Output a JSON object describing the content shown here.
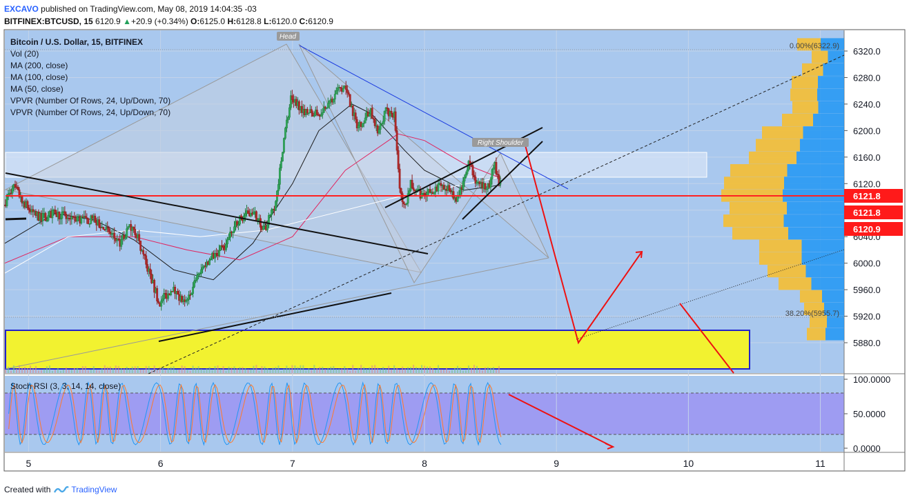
{
  "header": {
    "line1": {
      "user": "EXCAVO",
      "text": "published on TradingView.com, May 08, 2019 14:04:35 -03"
    },
    "line2": {
      "symbol": "BITFINEX:BTCUSD, 15",
      "price": "6120.9",
      "change": "+20.9 (+0.34%)",
      "o": "6125.0",
      "h": "6128.8",
      "l": "6120.0",
      "c": "6120.9"
    }
  },
  "legend": {
    "title": "Bitcoin / U.S. Dollar, 15, BITFINEX",
    "items": [
      "Vol (20)",
      "MA (200, close)",
      "MA (100, close)",
      "MA (50, close)",
      "VPVR (Number Of Rows, 24, Up/Down, 70)",
      "VPVR (Number Of Rows, 24, Up/Down, 70)"
    ]
  },
  "stoch": {
    "label": "Stoch RSI (3, 3, 14, 14, close)"
  },
  "annotations": {
    "head": "Head",
    "right_shoulder": "Right Shoulder",
    "fib_top": "0.00%(6322.9)",
    "fib_382": "38.20%(5955.7)"
  },
  "price_labels": [
    "6121.8",
    "6121.8",
    "6120.9"
  ],
  "footer": {
    "text": "Created with",
    "brand": "TradingView"
  },
  "colors": {
    "bg": "#a9c8ee",
    "red_line": "#ff2020",
    "yellow_zone": "#f2f230",
    "stoch_band": "#9e9cf2",
    "vp_up": "#2196f3",
    "vp_down": "#f5be32"
  },
  "chart_data": [
    {
      "type": "candlestick",
      "title": "Bitcoin / U.S. Dollar, 15, BITFINEX",
      "x_tick_labels": [
        "5",
        "6",
        "7",
        "8",
        "9",
        "10",
        "11"
      ],
      "y_tick_labels": [
        "6320.0",
        "6280.0",
        "6240.0",
        "6200.0",
        "6160.0",
        "6120.0",
        "6080.0",
        "6040.0",
        "6000.0",
        "5960.0",
        "5920.0",
        "5880.0"
      ],
      "ylim": [
        5875,
        6333
      ],
      "xlim": [
        4.82,
        11.18
      ],
      "current_price": 6120.9,
      "horizontal_levels": [
        6121.8
      ],
      "price_path": [
        [
          4.82,
          6088
        ],
        [
          4.9,
          6115
        ],
        [
          5.0,
          6085
        ],
        [
          5.1,
          6068
        ],
        [
          5.2,
          6075
        ],
        [
          5.35,
          6068
        ],
        [
          5.5,
          6065
        ],
        [
          5.6,
          6050
        ],
        [
          5.7,
          6030
        ],
        [
          5.8,
          6060
        ],
        [
          5.9,
          6000
        ],
        [
          6.0,
          5940
        ],
        [
          6.1,
          5962
        ],
        [
          6.2,
          5935
        ],
        [
          6.3,
          5985
        ],
        [
          6.4,
          6010
        ],
        [
          6.5,
          6025
        ],
        [
          6.6,
          6065
        ],
        [
          6.7,
          6080
        ],
        [
          6.8,
          6050
        ],
        [
          6.88,
          6090
        ],
        [
          6.95,
          6195
        ],
        [
          7.0,
          6250
        ],
        [
          7.1,
          6230
        ],
        [
          7.2,
          6225
        ],
        [
          7.3,
          6245
        ],
        [
          7.4,
          6270
        ],
        [
          7.46,
          6235
        ],
        [
          7.5,
          6205
        ],
        [
          7.6,
          6230
        ],
        [
          7.65,
          6200
        ],
        [
          7.72,
          6230
        ],
        [
          7.78,
          6225
        ],
        [
          7.82,
          6120
        ],
        [
          7.86,
          6080
        ],
        [
          7.9,
          6120
        ],
        [
          8.0,
          6100
        ],
        [
          8.1,
          6115
        ],
        [
          8.2,
          6110
        ],
        [
          8.25,
          6095
        ],
        [
          8.35,
          6150
        ],
        [
          8.42,
          6115
        ],
        [
          8.5,
          6120
        ],
        [
          8.54,
          6150
        ],
        [
          8.58,
          6121
        ]
      ],
      "moving_averages": [
        {
          "name": "MA (50, close)",
          "points": [
            [
              4.82,
              6030
            ],
            [
              5.2,
              6075
            ],
            [
              5.5,
              6065
            ],
            [
              5.8,
              6035
            ],
            [
              6.1,
              5990
            ],
            [
              6.4,
              5975
            ],
            [
              6.7,
              6030
            ],
            [
              7.0,
              6120
            ],
            [
              7.2,
              6200
            ],
            [
              7.45,
              6240
            ],
            [
              7.6,
              6225
            ],
            [
              7.85,
              6170
            ],
            [
              8.0,
              6140
            ],
            [
              8.3,
              6110
            ],
            [
              8.58,
              6118
            ]
          ]
        },
        {
          "name": "MA (100, close)",
          "points": [
            [
              4.82,
              6000
            ],
            [
              5.3,
              6040
            ],
            [
              5.8,
              6040
            ],
            [
              6.2,
              6020
            ],
            [
              6.6,
              6005
            ],
            [
              7.0,
              6040
            ],
            [
              7.4,
              6140
            ],
            [
              7.8,
              6195
            ],
            [
              8.0,
              6185
            ],
            [
              8.3,
              6150
            ],
            [
              8.58,
              6128
            ]
          ]
        },
        {
          "name": "MA (200, close)",
          "points": [
            [
              4.82,
              5985
            ],
            [
              5.3,
              6040
            ],
            [
              5.8,
              6050
            ],
            [
              6.3,
              6040
            ],
            [
              6.8,
              6050
            ],
            [
              7.2,
              6070
            ],
            [
              7.8,
              6100
            ],
            [
              8.2,
              6115
            ],
            [
              8.58,
              6130
            ]
          ]
        }
      ]
    },
    {
      "type": "line",
      "title": "Stoch RSI (3, 3, 14, 14, close)",
      "y_tick_labels": [
        "100.0000",
        "50.0000",
        "0.0000"
      ],
      "ylim": [
        -5,
        105
      ],
      "bands": [
        20,
        80
      ]
    }
  ]
}
